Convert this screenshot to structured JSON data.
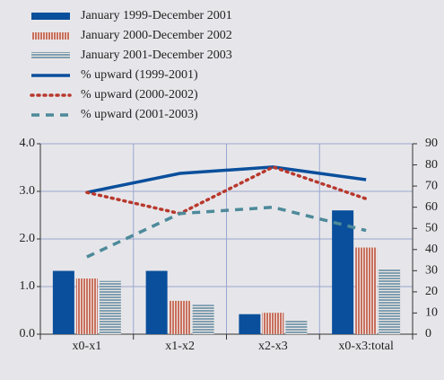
{
  "chart_data": {
    "type": "bar",
    "categories": [
      "x0-x1",
      "x1-x2",
      "x2-x3",
      "x0-x3:total"
    ],
    "ylim": [
      0,
      4
    ],
    "yticks": [
      {
        "value": 0,
        "label": "0.0"
      },
      {
        "value": 1,
        "label": "1.0"
      },
      {
        "value": 2,
        "label": "2.0"
      },
      {
        "value": 3,
        "label": "3.0"
      },
      {
        "value": 4,
        "label": "4.0"
      }
    ],
    "y2lim": [
      0,
      90
    ],
    "y2ticks": [
      0,
      10,
      20,
      30,
      40,
      50,
      60,
      70,
      80,
      90
    ],
    "grid": true,
    "series": [
      {
        "name": "January 1999-December 2001",
        "type": "bar",
        "color": "#0a4f9c",
        "fill_pattern": "solid",
        "values": [
          1.33,
          1.33,
          0.42,
          2.6
        ]
      },
      {
        "name": "January 2000-December 2002",
        "type": "bar",
        "color": "#c8705e",
        "fill_pattern": "vertical",
        "values": [
          1.17,
          0.7,
          0.45,
          1.82
        ]
      },
      {
        "name": "January 2001-December 2003",
        "type": "bar",
        "color": "#7f9fb2",
        "fill_pattern": "horizontal",
        "values": [
          1.12,
          0.62,
          0.3,
          1.37
        ]
      },
      {
        "name": "% upward (1999-2001)",
        "type": "line",
        "axis": "y2",
        "color": "#0a4f9c",
        "line_style": "solid",
        "values": [
          67,
          76,
          79,
          73
        ]
      },
      {
        "name": "% upward (2000-2002)",
        "type": "line",
        "axis": "y2",
        "color": "#b8382c",
        "line_style": "dotted",
        "values": [
          67,
          57,
          79,
          64
        ]
      },
      {
        "name": "% upward (2001-2003)",
        "type": "line",
        "axis": "y2",
        "color": "#4d8a9a",
        "line_style": "dashed",
        "values": [
          36.5,
          57,
          60,
          49
        ]
      }
    ]
  }
}
